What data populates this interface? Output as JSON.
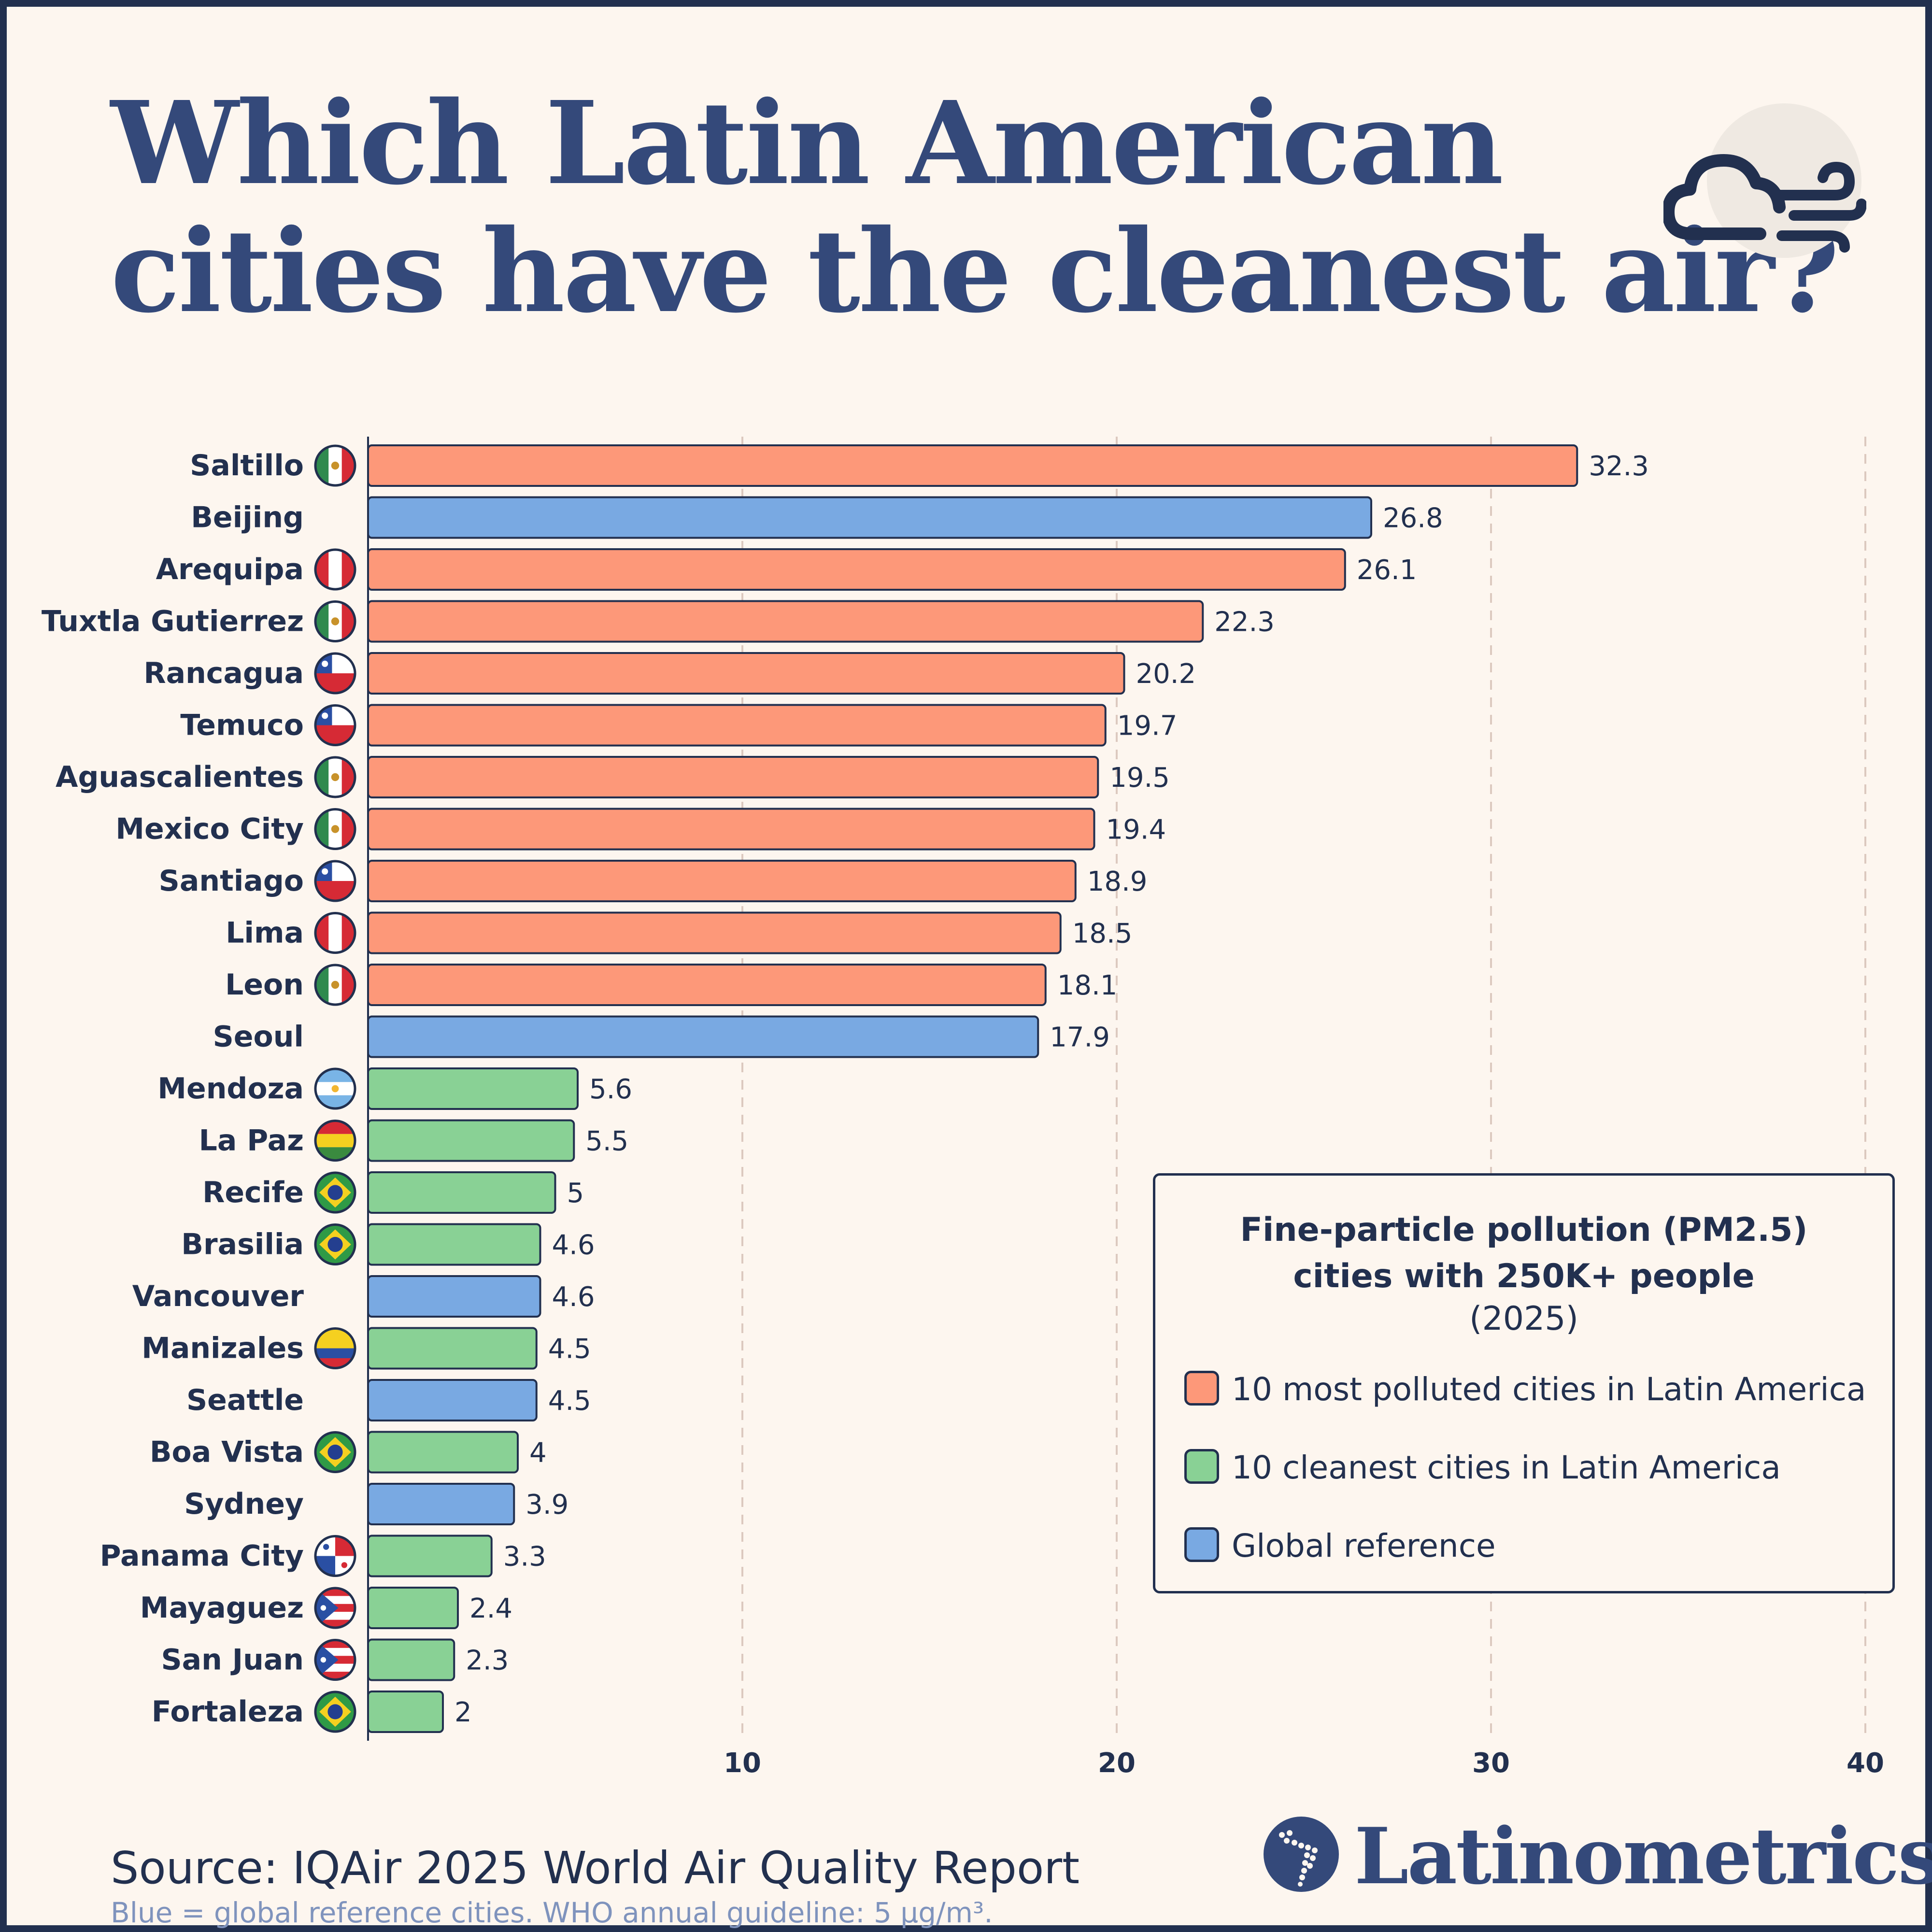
{
  "title_lines": [
    "Which Latin American",
    "cities have the cleanest air?"
  ],
  "header_icon": "cloud-wind-icon",
  "chart_data": {
    "type": "bar",
    "orientation": "horizontal",
    "title": "Which Latin American cities have the cleanest air?",
    "categories": [
      "Saltillo",
      "Beijing",
      "Arequipa",
      "Tuxtla Gutierrez",
      "Rancagua",
      "Temuco",
      "Aguascalientes",
      "Mexico City",
      "Santiago",
      "Lima",
      "Leon",
      "Seoul",
      "Mendoza",
      "La Paz",
      "Recife",
      "Brasilia",
      "Vancouver",
      "Manizales",
      "Seattle",
      "Boa Vista",
      "Sydney",
      "Panama City",
      "Mayaguez",
      "San Juan",
      "Fortaleza"
    ],
    "values": [
      32.3,
      26.8,
      26.1,
      22.3,
      20.2,
      19.7,
      19.5,
      19.4,
      18.9,
      18.5,
      18.1,
      17.9,
      5.6,
      5.5,
      5,
      4.6,
      4.6,
      4.5,
      4.5,
      4,
      3.9,
      3.3,
      2.4,
      2.3,
      2
    ],
    "groups": [
      "polluted",
      "global",
      "polluted",
      "polluted",
      "polluted",
      "polluted",
      "polluted",
      "polluted",
      "polluted",
      "polluted",
      "polluted",
      "global",
      "clean",
      "clean",
      "clean",
      "clean",
      "global",
      "clean",
      "global",
      "clean",
      "global",
      "clean",
      "clean",
      "clean",
      "clean"
    ],
    "flags": [
      "mexico",
      "",
      "peru",
      "mexico",
      "chile",
      "chile",
      "mexico",
      "mexico",
      "chile",
      "peru",
      "mexico",
      "",
      "argentina",
      "bolivia",
      "brazil",
      "brazil",
      "",
      "colombia",
      "",
      "brazil",
      "",
      "panama",
      "puerto-rico",
      "puerto-rico",
      "brazil"
    ],
    "xlim": [
      0,
      40
    ],
    "xticks": [
      10,
      20,
      30,
      40
    ],
    "grid": true,
    "legend_position": "bottom-right"
  },
  "legend": {
    "title_lines": [
      "Fine-particle pollution (PM2.5)",
      "cities with 250K+ people"
    ],
    "subtitle": "(2025)",
    "items": [
      {
        "key": "polluted",
        "label": "10 most polluted cities in Latin America",
        "color": "#fd9879"
      },
      {
        "key": "clean",
        "label": "10 cleanest cities in Latin America",
        "color": "#89d195"
      },
      {
        "key": "global",
        "label": "Global reference",
        "color": "#79a9e2"
      }
    ]
  },
  "source": "Source: IQAir 2025 World Air Quality Report",
  "note": "Blue = global reference cities. WHO annual guideline: 5 μg/m³.",
  "brand": "Latinometrics",
  "brand_icon": "latin-america-map-logo-icon"
}
